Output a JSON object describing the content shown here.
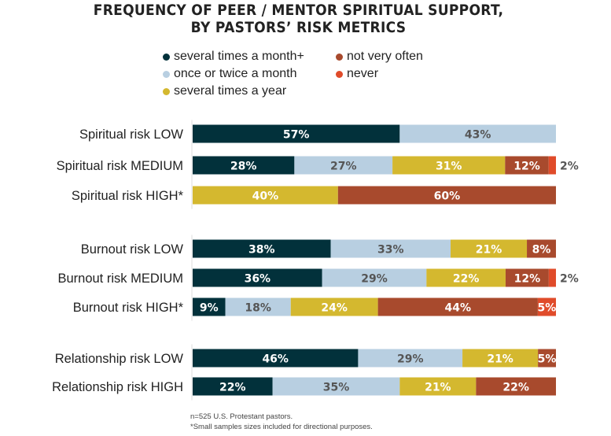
{
  "chart_data": {
    "type": "bar",
    "orientation": "horizontal",
    "stacked": true,
    "title": [
      "FREQUENCY OF PEER / MENTOR SPIRITUAL SUPPORT,",
      "BY PASTORS’ RISK METRICS"
    ],
    "legend_position": "top",
    "categories": [
      "Spiritual risk LOW",
      "Spiritual risk MEDIUM",
      "Spiritual risk HIGH*",
      "Burnout risk LOW",
      "Burnout risk MEDIUM",
      "Burnout risk HIGH*",
      "Relationship risk LOW",
      "Relationship risk HIGH"
    ],
    "groups": [
      [
        0,
        1,
        2
      ],
      [
        3,
        4,
        5
      ],
      [
        6,
        7
      ]
    ],
    "series": [
      {
        "name": "several times a month+",
        "color": "#02313b",
        "values": [
          57,
          28,
          null,
          38,
          36,
          9,
          46,
          22
        ]
      },
      {
        "name": "once or twice a month",
        "color": "#b8cfe1",
        "values": [
          43,
          27,
          null,
          33,
          29,
          18,
          29,
          35
        ]
      },
      {
        "name": "several times a year",
        "color": "#d4b82f",
        "values": [
          null,
          31,
          40,
          21,
          22,
          24,
          21,
          21
        ]
      },
      {
        "name": "not very often",
        "color": "#a84a2d",
        "values": [
          null,
          12,
          60,
          8,
          12,
          44,
          5,
          22
        ]
      },
      {
        "name": "never",
        "color": "#e04b2a",
        "values": [
          null,
          2,
          null,
          null,
          2,
          5,
          null,
          null
        ]
      }
    ],
    "xlim": [
      0,
      100
    ],
    "grid": false
  },
  "footnotes": [
    "n=525 U.S. Protestant pastors.",
    "*Small samples sizes included for directional purposes."
  ]
}
